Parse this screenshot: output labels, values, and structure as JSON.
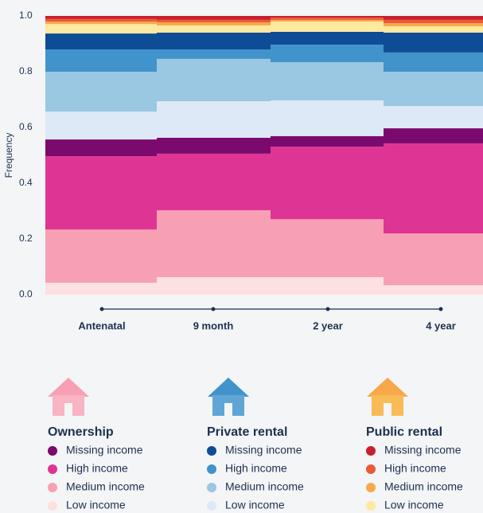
{
  "chart_data": {
    "type": "stacked_bar",
    "y_label": "Frequency",
    "categories": [
      "Antenatal",
      "9 month",
      "2 year",
      "4 year"
    ],
    "ylim": [
      0,
      1
    ],
    "yticks": [
      {
        "value": 0,
        "label": "0.0"
      },
      0.2,
      0.4,
      0.6,
      0.8,
      {
        "value": 1,
        "label": "1.0"
      }
    ],
    "groups": [
      "Ownership",
      "Private rental",
      "Public rental"
    ],
    "series": [
      {
        "name": "Low income",
        "color": "#fde0e0",
        "values": [
          0.043,
          0.063,
          0.063,
          0.034
        ]
      },
      {
        "name": "Medium income",
        "color": "#f7a0b4",
        "values": [
          0.191,
          0.24,
          0.208,
          0.186
        ]
      },
      {
        "name": "High income",
        "color": "#de3594",
        "values": [
          0.263,
          0.203,
          0.26,
          0.323
        ]
      },
      {
        "name": "Missing income",
        "color": "#7b0a6e",
        "values": [
          0.06,
          0.057,
          0.038,
          0.054
        ]
      },
      {
        "name": "Low income",
        "color": "#dde9f6",
        "values": [
          0.1,
          0.131,
          0.128,
          0.08
        ]
      },
      {
        "name": "Medium income",
        "color": "#9ac7e2",
        "values": [
          0.143,
          0.152,
          0.137,
          0.123
        ]
      },
      {
        "name": "High income",
        "color": "#4193cb",
        "values": [
          0.08,
          0.034,
          0.063,
          0.069
        ]
      },
      {
        "name": "Missing income",
        "color": "#0f4c96",
        "values": [
          0.057,
          0.06,
          0.046,
          0.071
        ]
      },
      {
        "name": "Low income",
        "color": "#fde9a0",
        "values": [
          0.034,
          0.026,
          0.037,
          0.023
        ]
      },
      {
        "name": "Medium income",
        "color": "#f7a84b",
        "values": [
          0.009,
          0.011,
          0.006,
          0.011
        ]
      },
      {
        "name": "High income",
        "color": "#ea5a36",
        "values": [
          0.009,
          0.009,
          0.008,
          0.012
        ]
      },
      {
        "name": "Missing income",
        "color": "#c8202e",
        "values": [
          0.011,
          0.014,
          0.006,
          0.014
        ]
      }
    ]
  }
}
